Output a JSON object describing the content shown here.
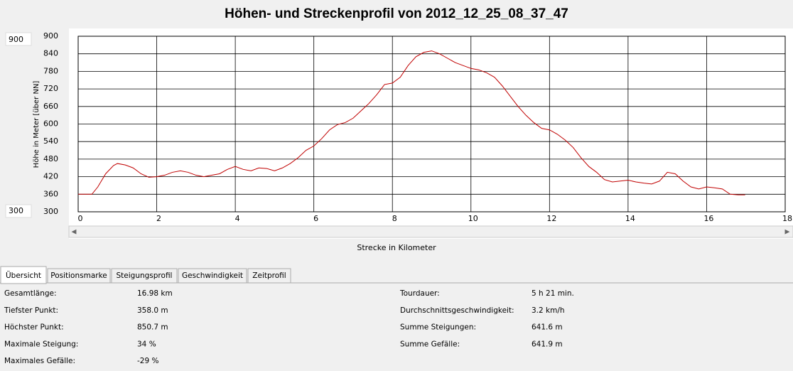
{
  "chart_data": {
    "type": "line",
    "title": "Höhen- und Streckenprofil von 2012_12_25_08_37_47",
    "xlabel": "Strecke in Kilometer",
    "ylabel": "Höhe in Meter [über NN]",
    "xlim": [
      0,
      18
    ],
    "xticks": [
      0,
      2,
      4,
      6,
      8,
      10,
      12,
      14,
      16,
      18
    ],
    "ylim": [
      300,
      900
    ],
    "yticks": [
      300,
      360,
      420,
      480,
      540,
      600,
      660,
      720,
      780,
      840,
      900
    ],
    "grid": true,
    "x": [
      0,
      0.35,
      0.5,
      0.7,
      0.9,
      1.0,
      1.2,
      1.4,
      1.6,
      1.8,
      2.0,
      2.2,
      2.4,
      2.6,
      2.8,
      3.0,
      3.2,
      3.4,
      3.6,
      3.8,
      4.0,
      4.2,
      4.4,
      4.6,
      4.8,
      5.0,
      5.2,
      5.4,
      5.6,
      5.8,
      6.0,
      6.2,
      6.4,
      6.6,
      6.8,
      7.0,
      7.2,
      7.4,
      7.6,
      7.8,
      8.0,
      8.2,
      8.4,
      8.6,
      8.8,
      9.0,
      9.2,
      9.4,
      9.6,
      9.8,
      10.0,
      10.2,
      10.4,
      10.6,
      10.8,
      11.0,
      11.2,
      11.4,
      11.6,
      11.8,
      12.0,
      12.2,
      12.4,
      12.6,
      12.8,
      13.0,
      13.2,
      13.4,
      13.6,
      13.8,
      14.0,
      14.2,
      14.4,
      14.6,
      14.8,
      15.0,
      15.2,
      15.4,
      15.6,
      15.8,
      16.0,
      16.2,
      16.4,
      16.6,
      16.8,
      16.98
    ],
    "series": [
      {
        "name": "Höhe",
        "color": "#c00000",
        "values": [
          360,
          360,
          385,
          430,
          458,
          465,
          460,
          450,
          430,
          418,
          420,
          425,
          435,
          440,
          435,
          425,
          420,
          425,
          430,
          445,
          455,
          445,
          440,
          450,
          448,
          440,
          450,
          465,
          485,
          510,
          525,
          550,
          580,
          598,
          605,
          620,
          645,
          670,
          700,
          735,
          740,
          760,
          800,
          830,
          845,
          850,
          840,
          825,
          810,
          800,
          790,
          785,
          775,
          760,
          730,
          695,
          660,
          630,
          605,
          585,
          580,
          565,
          545,
          520,
          485,
          455,
          435,
          410,
          402,
          405,
          408,
          402,
          398,
          395,
          405,
          435,
          430,
          405,
          385,
          378,
          385,
          382,
          378,
          360,
          358,
          358
        ]
      }
    ]
  },
  "range_inputs": {
    "max": "900",
    "min": "300"
  },
  "tabs": [
    "Übersicht",
    "Positionsmarke",
    "Steigungsprofil",
    "Geschwindigkeit",
    "Zeitprofil"
  ],
  "stats": [
    {
      "label": "Gesamtlänge:",
      "value": "16.98 km"
    },
    {
      "label": "Tiefster Punkt:",
      "value": "358.0 m"
    },
    {
      "label": "Höchster Punkt:",
      "value": "850.7 m"
    },
    {
      "label": "Maximale Steigung:",
      "value": "34 %"
    },
    {
      "label": "Maximales Gefälle:",
      "value": "-29 %"
    },
    {
      "label": "Tourdauer:",
      "value": "5 h 21 min."
    },
    {
      "label": "Durchschnittsgeschwindigkeit:",
      "value": "3.2 km/h"
    },
    {
      "label": "Summe Steigungen:",
      "value": "641.6 m"
    },
    {
      "label": "Summe Gefälle:",
      "value": "641.9 m"
    }
  ]
}
